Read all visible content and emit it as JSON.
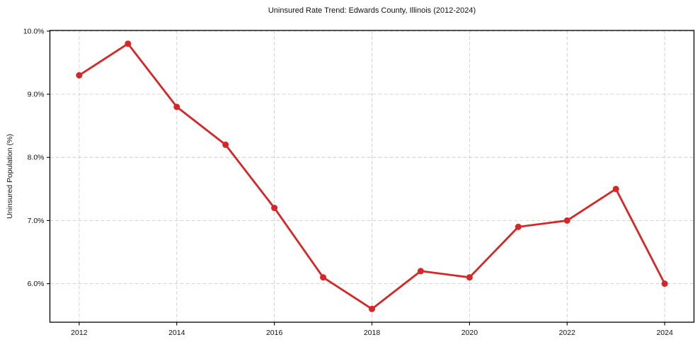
{
  "chart_data": {
    "type": "line",
    "title": "Uninsured Rate Trend: Edwards County, Illinois (2012-2024)",
    "xlabel": "",
    "ylabel": "Uninsured Population (%)",
    "x": [
      2012,
      2013,
      2014,
      2015,
      2016,
      2017,
      2018,
      2019,
      2020,
      2021,
      2022,
      2023,
      2024
    ],
    "values": [
      9.3,
      9.8,
      8.8,
      8.2,
      7.2,
      6.1,
      5.6,
      6.2,
      6.1,
      6.9,
      7.0,
      7.5,
      6.0
    ],
    "line_color": "#d62728",
    "marker": "circle",
    "xlim": [
      2011.4,
      2024.6
    ],
    "ylim": [
      5.39,
      10.01
    ],
    "xticks": [
      2012,
      2014,
      2016,
      2018,
      2020,
      2022,
      2024
    ],
    "xtick_labels": [
      "2012",
      "2014",
      "2016",
      "2018",
      "2020",
      "2022",
      "2024"
    ],
    "yticks": [
      6.0,
      7.0,
      8.0,
      9.0,
      10.0
    ],
    "ytick_labels": [
      "6.0%",
      "7.0%",
      "8.0%",
      "9.0%",
      "10.0%"
    ],
    "grid": true,
    "grid_color": "#cdcdcd",
    "legend": "none",
    "background": "#ffffff"
  }
}
